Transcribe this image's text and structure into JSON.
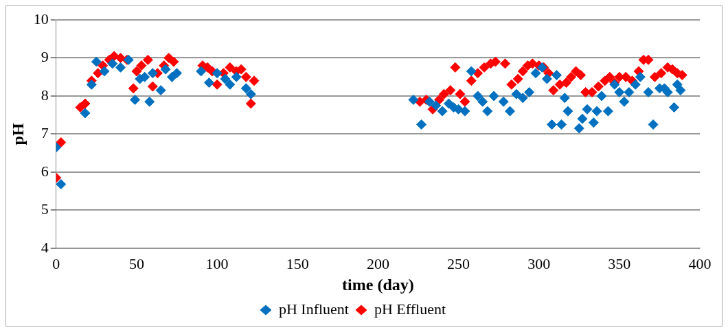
{
  "chart_data": {
    "type": "scatter",
    "xlabel": "time (day)",
    "ylabel": "pH",
    "xlim": [
      0,
      400
    ],
    "xticks": [
      0,
      50,
      100,
      150,
      200,
      250,
      300,
      350,
      400
    ],
    "ylim": [
      4,
      10
    ],
    "yticks": [
      4,
      5,
      6,
      7,
      8,
      9,
      10
    ],
    "grid": "y",
    "legend": "bottom",
    "marker": "diamond",
    "series": [
      {
        "name": "pH Influent",
        "color": "#0070c0",
        "x": [
          0,
          3,
          18,
          22,
          25,
          30,
          35,
          40,
          45,
          49,
          52,
          55,
          58,
          60,
          65,
          68,
          72,
          75,
          90,
          95,
          100,
          105,
          108,
          112,
          118,
          121,
          222,
          227,
          232,
          236,
          240,
          244,
          247,
          250,
          254,
          258,
          262,
          265,
          268,
          272,
          278,
          282,
          286,
          290,
          294,
          298,
          302,
          305,
          308,
          311,
          314,
          316,
          318,
          325,
          327,
          330,
          334,
          336,
          339,
          343,
          347,
          350,
          353,
          356,
          360,
          363,
          368,
          371,
          375,
          378,
          380,
          384,
          386,
          388
        ],
        "values": [
          6.65,
          5.68,
          7.55,
          8.3,
          8.9,
          8.65,
          8.85,
          8.75,
          8.95,
          7.9,
          8.45,
          8.5,
          7.85,
          8.6,
          8.15,
          8.7,
          8.5,
          8.6,
          8.65,
          8.35,
          8.6,
          8.45,
          8.3,
          8.5,
          8.2,
          8.05,
          7.9,
          7.25,
          7.85,
          7.75,
          7.6,
          7.8,
          7.7,
          7.65,
          7.6,
          8.65,
          8.0,
          7.85,
          7.6,
          8.0,
          7.85,
          7.6,
          8.05,
          7.95,
          8.1,
          8.6,
          8.75,
          8.45,
          7.25,
          8.55,
          7.25,
          7.95,
          7.6,
          7.15,
          7.4,
          7.65,
          7.3,
          7.6,
          8.0,
          7.6,
          8.3,
          8.1,
          7.85,
          8.1,
          8.3,
          8.5,
          8.1,
          7.25,
          8.2,
          8.2,
          8.1,
          7.7,
          8.3,
          8.15
        ]
      },
      {
        "name": "pH Effluent",
        "color": "#ff0000",
        "x": [
          0,
          3,
          15,
          18,
          22,
          26,
          29,
          33,
          36,
          40,
          44,
          48,
          50,
          53,
          57,
          60,
          63,
          67,
          70,
          73,
          91,
          94,
          97,
          100,
          104,
          108,
          112,
          115,
          118,
          121,
          123,
          226,
          230,
          234,
          238,
          241,
          245,
          248,
          251,
          254,
          258,
          262,
          266,
          270,
          273,
          279,
          283,
          287,
          290,
          293,
          296,
          300,
          303,
          306,
          309,
          313,
          317,
          320,
          323,
          326,
          329,
          333,
          337,
          341,
          344,
          347,
          350,
          354,
          358,
          362,
          365,
          368,
          372,
          376,
          380,
          383,
          386,
          389
        ],
        "values": [
          5.85,
          6.78,
          7.7,
          7.8,
          8.4,
          8.6,
          8.8,
          8.95,
          9.05,
          9.0,
          8.95,
          8.2,
          8.65,
          8.8,
          8.95,
          8.25,
          8.6,
          8.8,
          9.0,
          8.9,
          8.8,
          8.75,
          8.65,
          8.3,
          8.6,
          8.75,
          8.65,
          8.7,
          8.5,
          7.8,
          8.4,
          7.85,
          7.9,
          7.65,
          7.9,
          8.05,
          8.15,
          8.75,
          8.05,
          7.85,
          8.4,
          8.6,
          8.75,
          8.85,
          8.9,
          8.85,
          8.3,
          8.45,
          8.65,
          8.8,
          8.85,
          8.8,
          8.75,
          8.6,
          8.15,
          8.3,
          8.35,
          8.5,
          8.65,
          8.55,
          8.1,
          8.1,
          8.25,
          8.4,
          8.5,
          8.35,
          8.5,
          8.5,
          8.4,
          8.65,
          8.95,
          8.95,
          8.5,
          8.6,
          8.75,
          8.7,
          8.6,
          8.55
        ]
      }
    ]
  }
}
